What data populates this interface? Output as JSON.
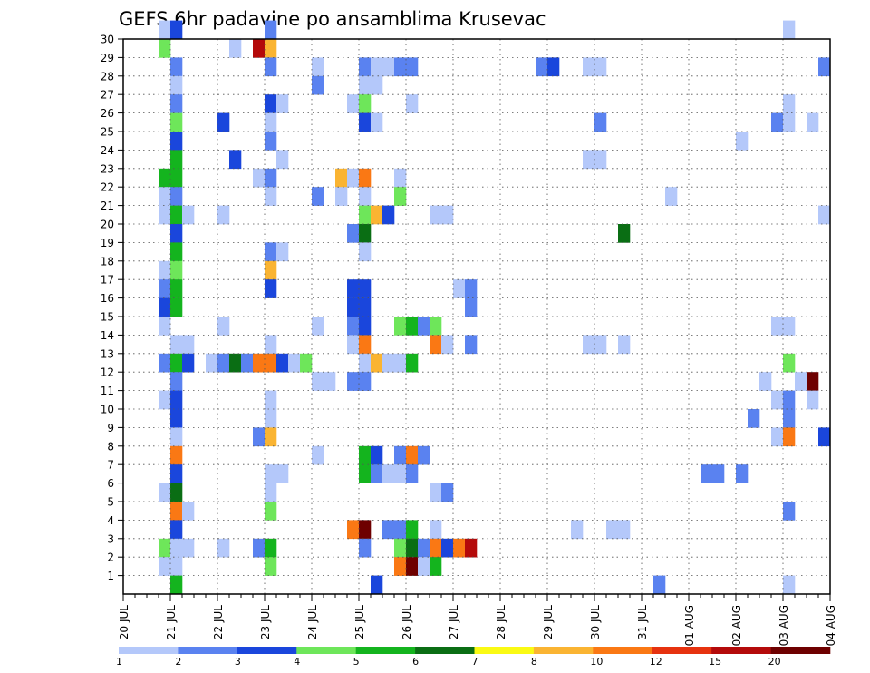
{
  "chart_data": {
    "type": "heatmap",
    "title": "GEFS 6hr padavine po ansamblima Krusevac",
    "x_tick_labels": [
      "20 JUL",
      "21 JUL",
      "22 JUL",
      "23 JUL",
      "24 JUL",
      "25 JUL",
      "26 JUL",
      "27 JUL",
      "28 JUL",
      "29 JUL",
      "30 JUL",
      "31 JUL",
      "01 AUG",
      "02 AUG",
      "03 AUG",
      "04 AUG"
    ],
    "y_tick_labels": [
      "1",
      "2",
      "3",
      "4",
      "5",
      "6",
      "7",
      "8",
      "9",
      "10",
      "11",
      "12",
      "13",
      "14",
      "15",
      "16",
      "17",
      "18",
      "19",
      "20",
      "21",
      "22",
      "23",
      "24",
      "25",
      "26",
      "27",
      "28",
      "29",
      "30"
    ],
    "x_range": [
      "20 JUL 00Z",
      "04 AUG 00Z"
    ],
    "y_range": [
      0,
      30
    ],
    "grid": "dotted",
    "colorbar": {
      "labels": [
        "1",
        "2",
        "3",
        "4",
        "5",
        "6",
        "7",
        "8",
        "10",
        "12",
        "15",
        "20"
      ],
      "colors": [
        "#b4c8fa",
        "#5a82f0",
        "#1a46dc",
        "#6ee65a",
        "#14b41e",
        "#0a6e14",
        "#fafa14",
        "#fab432",
        "#fa7814",
        "#e6320f",
        "#b40a0a",
        "#6e0000"
      ]
    },
    "cells": [
      {
        "m": 30,
        "t": 3,
        "v": 1
      },
      {
        "m": 30,
        "t": 4,
        "v": 3
      },
      {
        "m": 30,
        "t": 12,
        "v": 2
      },
      {
        "m": 30,
        "t": 56,
        "v": 1
      },
      {
        "m": 29,
        "t": 3,
        "v": 4
      },
      {
        "m": 29,
        "t": 9,
        "v": 1
      },
      {
        "m": 29,
        "t": 11,
        "v": 15
      },
      {
        "m": 29,
        "t": 12,
        "v": 8
      },
      {
        "m": 28,
        "t": 4,
        "v": 2
      },
      {
        "m": 28,
        "t": 12,
        "v": 2
      },
      {
        "m": 28,
        "t": 16,
        "v": 1
      },
      {
        "m": 28,
        "t": 20,
        "v": 2
      },
      {
        "m": 28,
        "t": 21,
        "v": 1
      },
      {
        "m": 28,
        "t": 22,
        "v": 1
      },
      {
        "m": 28,
        "t": 23,
        "v": 2
      },
      {
        "m": 28,
        "t": 24,
        "v": 2
      },
      {
        "m": 28,
        "t": 35,
        "v": 2
      },
      {
        "m": 28,
        "t": 36,
        "v": 3
      },
      {
        "m": 28,
        "t": 39,
        "v": 1
      },
      {
        "m": 28,
        "t": 40,
        "v": 1
      },
      {
        "m": 28,
        "t": 59,
        "v": 2
      },
      {
        "m": 27,
        "t": 4,
        "v": 1
      },
      {
        "m": 27,
        "t": 16,
        "v": 2
      },
      {
        "m": 27,
        "t": 20,
        "v": 1
      },
      {
        "m": 27,
        "t": 21,
        "v": 1
      },
      {
        "m": 26,
        "t": 4,
        "v": 2
      },
      {
        "m": 26,
        "t": 12,
        "v": 3
      },
      {
        "m": 26,
        "t": 13,
        "v": 1
      },
      {
        "m": 26,
        "t": 19,
        "v": 1
      },
      {
        "m": 26,
        "t": 20,
        "v": 4
      },
      {
        "m": 26,
        "t": 24,
        "v": 1
      },
      {
        "m": 26,
        "t": 56,
        "v": 1
      },
      {
        "m": 25,
        "t": 4,
        "v": 4
      },
      {
        "m": 25,
        "t": 8,
        "v": 3
      },
      {
        "m": 25,
        "t": 12,
        "v": 1
      },
      {
        "m": 25,
        "t": 20,
        "v": 3
      },
      {
        "m": 25,
        "t": 21,
        "v": 1
      },
      {
        "m": 25,
        "t": 40,
        "v": 2
      },
      {
        "m": 25,
        "t": 55,
        "v": 2
      },
      {
        "m": 25,
        "t": 56,
        "v": 1
      },
      {
        "m": 25,
        "t": 58,
        "v": 1
      },
      {
        "m": 24,
        "t": 4,
        "v": 3
      },
      {
        "m": 24,
        "t": 12,
        "v": 2
      },
      {
        "m": 24,
        "t": 52,
        "v": 1
      },
      {
        "m": 23,
        "t": 4,
        "v": 5
      },
      {
        "m": 23,
        "t": 9,
        "v": 3
      },
      {
        "m": 23,
        "t": 13,
        "v": 1
      },
      {
        "m": 23,
        "t": 39,
        "v": 1
      },
      {
        "m": 23,
        "t": 40,
        "v": 1
      },
      {
        "m": 22,
        "t": 3,
        "v": 5
      },
      {
        "m": 22,
        "t": 4,
        "v": 5
      },
      {
        "m": 22,
        "t": 11,
        "v": 1
      },
      {
        "m": 22,
        "t": 12,
        "v": 2
      },
      {
        "m": 22,
        "t": 18,
        "v": 8
      },
      {
        "m": 22,
        "t": 19,
        "v": 1
      },
      {
        "m": 22,
        "t": 20,
        "v": 10
      },
      {
        "m": 22,
        "t": 23,
        "v": 1
      },
      {
        "m": 21,
        "t": 3,
        "v": 1
      },
      {
        "m": 21,
        "t": 4,
        "v": 2
      },
      {
        "m": 21,
        "t": 12,
        "v": 1
      },
      {
        "m": 21,
        "t": 16,
        "v": 2
      },
      {
        "m": 21,
        "t": 18,
        "v": 1
      },
      {
        "m": 21,
        "t": 20,
        "v": 1
      },
      {
        "m": 21,
        "t": 23,
        "v": 4
      },
      {
        "m": 21,
        "t": 46,
        "v": 1
      },
      {
        "m": 20,
        "t": 3,
        "v": 1
      },
      {
        "m": 20,
        "t": 4,
        "v": 5
      },
      {
        "m": 20,
        "t": 5,
        "v": 1
      },
      {
        "m": 20,
        "t": 8,
        "v": 1
      },
      {
        "m": 20,
        "t": 20,
        "v": 4
      },
      {
        "m": 20,
        "t": 21,
        "v": 8
      },
      {
        "m": 20,
        "t": 22,
        "v": 3
      },
      {
        "m": 20,
        "t": 26,
        "v": 1
      },
      {
        "m": 20,
        "t": 27,
        "v": 1
      },
      {
        "m": 20,
        "t": 59,
        "v": 1
      },
      {
        "m": 19,
        "t": 4,
        "v": 3
      },
      {
        "m": 19,
        "t": 19,
        "v": 2
      },
      {
        "m": 19,
        "t": 20,
        "v": 6
      },
      {
        "m": 19,
        "t": 42,
        "v": 6
      },
      {
        "m": 18,
        "t": 4,
        "v": 5
      },
      {
        "m": 18,
        "t": 12,
        "v": 2
      },
      {
        "m": 18,
        "t": 13,
        "v": 1
      },
      {
        "m": 18,
        "t": 20,
        "v": 1
      },
      {
        "m": 17,
        "t": 3,
        "v": 1
      },
      {
        "m": 17,
        "t": 4,
        "v": 4
      },
      {
        "m": 17,
        "t": 12,
        "v": 8
      },
      {
        "m": 16,
        "t": 3,
        "v": 2
      },
      {
        "m": 16,
        "t": 4,
        "v": 5
      },
      {
        "m": 16,
        "t": 12,
        "v": 3
      },
      {
        "m": 16,
        "t": 19,
        "v": 3
      },
      {
        "m": 16,
        "t": 20,
        "v": 3
      },
      {
        "m": 16,
        "t": 28,
        "v": 1
      },
      {
        "m": 16,
        "t": 29,
        "v": 2
      },
      {
        "m": 15,
        "t": 3,
        "v": 3
      },
      {
        "m": 15,
        "t": 4,
        "v": 5
      },
      {
        "m": 15,
        "t": 19,
        "v": 3
      },
      {
        "m": 15,
        "t": 20,
        "v": 3
      },
      {
        "m": 15,
        "t": 29,
        "v": 2
      },
      {
        "m": 14,
        "t": 3,
        "v": 1
      },
      {
        "m": 14,
        "t": 8,
        "v": 1
      },
      {
        "m": 14,
        "t": 16,
        "v": 1
      },
      {
        "m": 14,
        "t": 19,
        "v": 2
      },
      {
        "m": 14,
        "t": 20,
        "v": 3
      },
      {
        "m": 14,
        "t": 23,
        "v": 4
      },
      {
        "m": 14,
        "t": 24,
        "v": 5
      },
      {
        "m": 14,
        "t": 25,
        "v": 2
      },
      {
        "m": 14,
        "t": 26,
        "v": 4
      },
      {
        "m": 14,
        "t": 55,
        "v": 1
      },
      {
        "m": 14,
        "t": 56,
        "v": 1
      },
      {
        "m": 13,
        "t": 4,
        "v": 1
      },
      {
        "m": 13,
        "t": 5,
        "v": 1
      },
      {
        "m": 13,
        "t": 12,
        "v": 1
      },
      {
        "m": 13,
        "t": 19,
        "v": 1
      },
      {
        "m": 13,
        "t": 20,
        "v": 10
      },
      {
        "m": 13,
        "t": 26,
        "v": 10
      },
      {
        "m": 13,
        "t": 27,
        "v": 1
      },
      {
        "m": 13,
        "t": 29,
        "v": 2
      },
      {
        "m": 13,
        "t": 39,
        "v": 1
      },
      {
        "m": 13,
        "t": 40,
        "v": 1
      },
      {
        "m": 13,
        "t": 42,
        "v": 1
      },
      {
        "m": 12,
        "t": 3,
        "v": 2
      },
      {
        "m": 12,
        "t": 4,
        "v": 5
      },
      {
        "m": 12,
        "t": 5,
        "v": 3
      },
      {
        "m": 12,
        "t": 7,
        "v": 1
      },
      {
        "m": 12,
        "t": 8,
        "v": 2
      },
      {
        "m": 12,
        "t": 9,
        "v": 6
      },
      {
        "m": 12,
        "t": 10,
        "v": 2
      },
      {
        "m": 12,
        "t": 11,
        "v": 10
      },
      {
        "m": 12,
        "t": 12,
        "v": 10
      },
      {
        "m": 12,
        "t": 13,
        "v": 3
      },
      {
        "m": 12,
        "t": 14,
        "v": 1
      },
      {
        "m": 12,
        "t": 15,
        "v": 4
      },
      {
        "m": 12,
        "t": 20,
        "v": 1
      },
      {
        "m": 12,
        "t": 21,
        "v": 8
      },
      {
        "m": 12,
        "t": 22,
        "v": 1
      },
      {
        "m": 12,
        "t": 23,
        "v": 1
      },
      {
        "m": 12,
        "t": 24,
        "v": 5
      },
      {
        "m": 12,
        "t": 56,
        "v": 4
      },
      {
        "m": 11,
        "t": 4,
        "v": 2
      },
      {
        "m": 11,
        "t": 16,
        "v": 1
      },
      {
        "m": 11,
        "t": 17,
        "v": 1
      },
      {
        "m": 11,
        "t": 19,
        "v": 2
      },
      {
        "m": 11,
        "t": 20,
        "v": 2
      },
      {
        "m": 11,
        "t": 54,
        "v": 1
      },
      {
        "m": 11,
        "t": 57,
        "v": 1
      },
      {
        "m": 11,
        "t": 58,
        "v": 20
      },
      {
        "m": 10,
        "t": 3,
        "v": 1
      },
      {
        "m": 10,
        "t": 4,
        "v": 3
      },
      {
        "m": 10,
        "t": 12,
        "v": 1
      },
      {
        "m": 10,
        "t": 55,
        "v": 1
      },
      {
        "m": 10,
        "t": 56,
        "v": 2
      },
      {
        "m": 10,
        "t": 58,
        "v": 1
      },
      {
        "m": 9,
        "t": 4,
        "v": 3
      },
      {
        "m": 9,
        "t": 12,
        "v": 1
      },
      {
        "m": 9,
        "t": 53,
        "v": 2
      },
      {
        "m": 9,
        "t": 56,
        "v": 2
      },
      {
        "m": 8,
        "t": 4,
        "v": 1
      },
      {
        "m": 8,
        "t": 11,
        "v": 2
      },
      {
        "m": 8,
        "t": 12,
        "v": 8
      },
      {
        "m": 8,
        "t": 55,
        "v": 1
      },
      {
        "m": 8,
        "t": 56,
        "v": 10
      },
      {
        "m": 8,
        "t": 59,
        "v": 3
      },
      {
        "m": 7,
        "t": 4,
        "v": 10
      },
      {
        "m": 7,
        "t": 16,
        "v": 1
      },
      {
        "m": 7,
        "t": 20,
        "v": 5
      },
      {
        "m": 7,
        "t": 21,
        "v": 3
      },
      {
        "m": 7,
        "t": 23,
        "v": 2
      },
      {
        "m": 7,
        "t": 24,
        "v": 10
      },
      {
        "m": 7,
        "t": 25,
        "v": 2
      },
      {
        "m": 6,
        "t": 4,
        "v": 3
      },
      {
        "m": 6,
        "t": 12,
        "v": 1
      },
      {
        "m": 6,
        "t": 13,
        "v": 1
      },
      {
        "m": 6,
        "t": 20,
        "v": 5
      },
      {
        "m": 6,
        "t": 21,
        "v": 2
      },
      {
        "m": 6,
        "t": 22,
        "v": 1
      },
      {
        "m": 6,
        "t": 23,
        "v": 1
      },
      {
        "m": 6,
        "t": 24,
        "v": 2
      },
      {
        "m": 6,
        "t": 49,
        "v": 2
      },
      {
        "m": 6,
        "t": 50,
        "v": 2
      },
      {
        "m": 6,
        "t": 52,
        "v": 2
      },
      {
        "m": 5,
        "t": 3,
        "v": 1
      },
      {
        "m": 5,
        "t": 4,
        "v": 6
      },
      {
        "m": 5,
        "t": 12,
        "v": 1
      },
      {
        "m": 5,
        "t": 26,
        "v": 1
      },
      {
        "m": 5,
        "t": 27,
        "v": 2
      },
      {
        "m": 4,
        "t": 4,
        "v": 10
      },
      {
        "m": 4,
        "t": 5,
        "v": 1
      },
      {
        "m": 4,
        "t": 12,
        "v": 4
      },
      {
        "m": 4,
        "t": 56,
        "v": 2
      },
      {
        "m": 3,
        "t": 4,
        "v": 3
      },
      {
        "m": 3,
        "t": 19,
        "v": 10
      },
      {
        "m": 3,
        "t": 20,
        "v": 20
      },
      {
        "m": 3,
        "t": 22,
        "v": 2
      },
      {
        "m": 3,
        "t": 23,
        "v": 2
      },
      {
        "m": 3,
        "t": 24,
        "v": 5
      },
      {
        "m": 3,
        "t": 26,
        "v": 1
      },
      {
        "m": 3,
        "t": 38,
        "v": 1
      },
      {
        "m": 3,
        "t": 41,
        "v": 1
      },
      {
        "m": 3,
        "t": 42,
        "v": 1
      },
      {
        "m": 2,
        "t": 3,
        "v": 4
      },
      {
        "m": 2,
        "t": 4,
        "v": 1
      },
      {
        "m": 2,
        "t": 5,
        "v": 1
      },
      {
        "m": 2,
        "t": 8,
        "v": 1
      },
      {
        "m": 2,
        "t": 11,
        "v": 2
      },
      {
        "m": 2,
        "t": 12,
        "v": 5
      },
      {
        "m": 2,
        "t": 20,
        "v": 2
      },
      {
        "m": 2,
        "t": 23,
        "v": 4
      },
      {
        "m": 2,
        "t": 24,
        "v": 6
      },
      {
        "m": 2,
        "t": 25,
        "v": 2
      },
      {
        "m": 2,
        "t": 26,
        "v": 10
      },
      {
        "m": 2,
        "t": 27,
        "v": 3
      },
      {
        "m": 2,
        "t": 28,
        "v": 10
      },
      {
        "m": 2,
        "t": 29,
        "v": 15
      },
      {
        "m": 1,
        "t": 3,
        "v": 1
      },
      {
        "m": 1,
        "t": 4,
        "v": 1
      },
      {
        "m": 1,
        "t": 12,
        "v": 4
      },
      {
        "m": 1,
        "t": 23,
        "v": 10
      },
      {
        "m": 1,
        "t": 24,
        "v": 20
      },
      {
        "m": 1,
        "t": 25,
        "v": 1
      },
      {
        "m": 1,
        "t": 26,
        "v": 5
      },
      {
        "m": 0,
        "t": 4,
        "v": 5
      },
      {
        "m": 0,
        "t": 21,
        "v": 3
      },
      {
        "m": 0,
        "t": 45,
        "v": 2
      },
      {
        "m": 0,
        "t": 56,
        "v": 1
      }
    ]
  }
}
